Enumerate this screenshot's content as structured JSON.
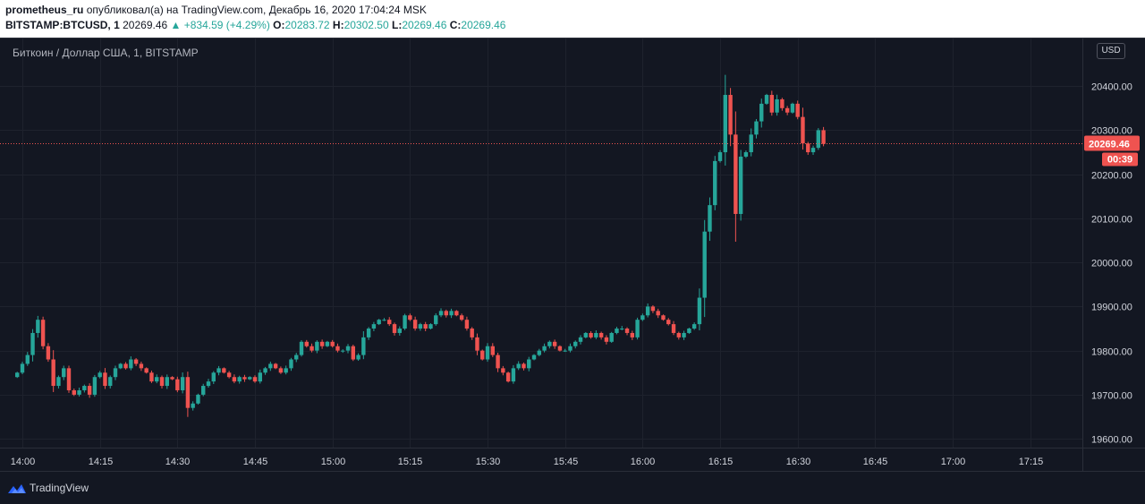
{
  "header": {
    "author": "prometheus_ru",
    "published_text": "опубликовал(а) на TradingView.com, Декабрь 16, 2020 17:04:24 MSK",
    "symbol": "BITSTAMP:BTCUSD, 1",
    "last": "20269.46",
    "change": "▲ +834.59 (+4.29%)",
    "open_label": "O:",
    "open": "20283.72",
    "high_label": "H:",
    "high": "20302.50",
    "low_label": "L:",
    "low": "20269.46",
    "close_label": "C:",
    "close": "20269.46"
  },
  "chart_title": "Биткоин / Доллар США, 1, BITSTAMP",
  "currency_badge": "USD",
  "price_label": "20269.46",
  "countdown_label": "00:39",
  "footer": {
    "brand": "TradingView"
  },
  "colors": {
    "up": "#26a69a",
    "down": "#ef5350",
    "background": "#131722",
    "grid": "#1e222d",
    "price_line": "#ef5350"
  },
  "chart_data": {
    "type": "candlestick",
    "y_ticks": [
      "19600.00",
      "19700.00",
      "19800.00",
      "19900.00",
      "20000.00",
      "20100.00",
      "20200.00",
      "20300.00",
      "20400.00"
    ],
    "x_ticks": [
      "14:00",
      "14:15",
      "14:30",
      "14:45",
      "15:00",
      "15:15",
      "15:30",
      "15:45",
      "16:00",
      "16:15",
      "16:30",
      "16:45",
      "17:00",
      "17:15"
    ],
    "ylim": [
      19580,
      20510
    ],
    "last_price": 20269.46,
    "candles_start": "13:59",
    "interval_minutes": 1,
    "close": [
      19750,
      19770,
      19790,
      19840,
      19870,
      19810,
      19780,
      19720,
      19740,
      19760,
      19710,
      19700,
      19710,
      19720,
      19700,
      19740,
      19750,
      19720,
      19740,
      19760,
      19770,
      19760,
      19780,
      19770,
      19760,
      19750,
      19730,
      19740,
      19720,
      19740,
      19735,
      19710,
      19740,
      19670,
      19680,
      19700,
      19720,
      19730,
      19750,
      19760,
      19750,
      19740,
      19730,
      19740,
      19735,
      19740,
      19730,
      19750,
      19760,
      19770,
      19760,
      19750,
      19760,
      19780,
      19790,
      19820,
      19810,
      19800,
      19820,
      19810,
      19820,
      19810,
      19800,
      19800,
      19810,
      19780,
      19790,
      19830,
      19850,
      19860,
      19870,
      19870,
      19860,
      19840,
      19850,
      19880,
      19870,
      19850,
      19860,
      19850,
      19860,
      19880,
      19890,
      19880,
      19890,
      19880,
      19870,
      19850,
      19830,
      19800,
      19780,
      19810,
      19790,
      19760,
      19750,
      19730,
      19760,
      19770,
      19760,
      19780,
      19790,
      19800,
      19810,
      19820,
      19810,
      19800,
      19800,
      19810,
      19820,
      19830,
      19840,
      19830,
      19840,
      19830,
      19820,
      19840,
      19850,
      19850,
      19840,
      19830,
      19870,
      19880,
      19900,
      19890,
      19880,
      19870,
      19860,
      19840,
      19830,
      19840,
      19850,
      19860,
      19920,
      20070,
      20130,
      20230,
      20250,
      20380,
      20290,
      20110,
      20240,
      20250,
      20290,
      20320,
      20360,
      20380,
      20340,
      20370,
      20350,
      20340,
      20360,
      20330,
      20270,
      20250,
      20260,
      20300,
      20269
    ]
  }
}
